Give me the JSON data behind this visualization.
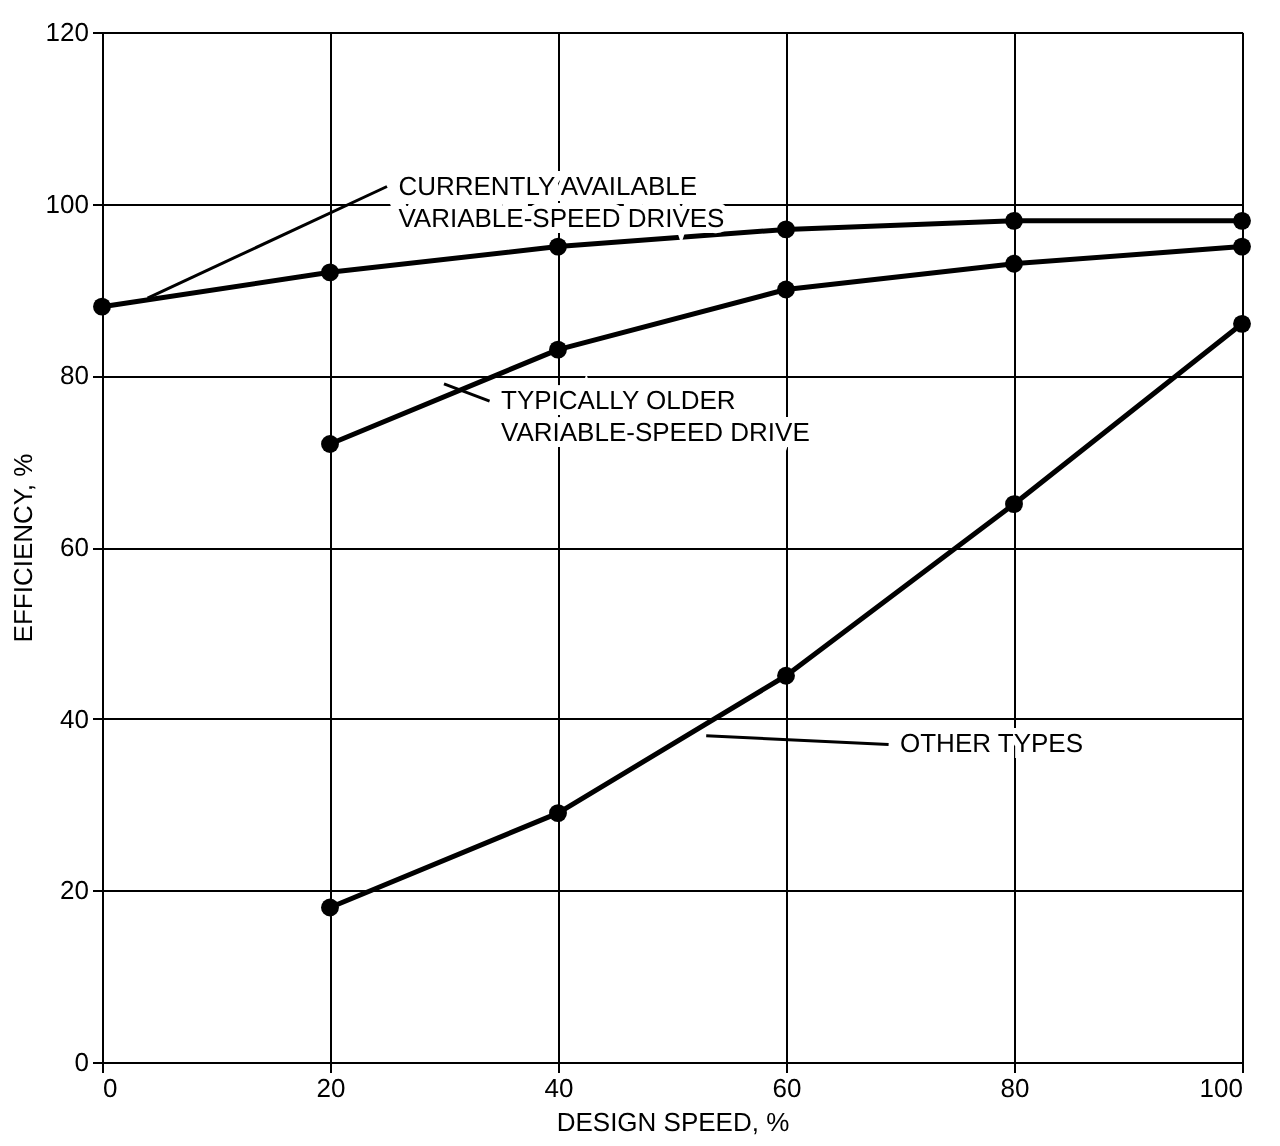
{
  "chart_data": {
    "type": "line",
    "xlabel": "DESIGN SPEED, %",
    "ylabel": "EFFICIENCY, %",
    "series": [
      {
        "color": "#000000",
        "x": [
          0,
          20,
          40,
          60,
          80,
          100
        ],
        "values": [
          88,
          92,
          95,
          97,
          98,
          98
        ]
      },
      {
        "color": "#000000",
        "x": [
          20,
          40,
          60,
          80,
          100
        ],
        "values": [
          72,
          83,
          90,
          93,
          95
        ]
      },
      {
        "color": "#000000",
        "x": [
          20,
          40,
          60,
          80,
          100
        ],
        "values": [
          18,
          29,
          45,
          65,
          86
        ]
      }
    ],
    "xlim": [
      0,
      100
    ],
    "xticks": [
      0,
      20,
      40,
      60,
      80,
      100
    ],
    "ylim": [
      0,
      120
    ],
    "yticks": [
      0,
      20,
      40,
      60,
      80,
      100,
      120
    ],
    "grid": true,
    "marker": "circle",
    "line_style": "solid",
    "annotations": [
      {
        "text": "CURRENTLY AVAILABLE\nVARIABLE-SPEED DRIVES",
        "x": 4,
        "y": 89
      },
      {
        "text": "TYPICALLY OLDER\nVARIABLE-SPEED DRIVE",
        "x": 30,
        "y": 79
      },
      {
        "text": "OTHER TYPES",
        "x": 53,
        "y": 38
      }
    ]
  }
}
